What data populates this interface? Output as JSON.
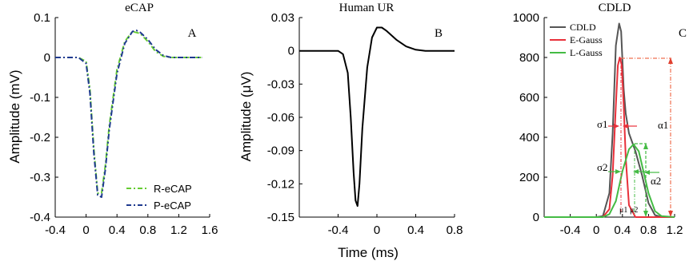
{
  "chart_data": [
    {
      "id": "A",
      "type": "line",
      "title": "eCAP",
      "panel_label": "A",
      "ylabel": "Amplitude (mV)",
      "xlabel": "",
      "xlim": [
        -0.4,
        1.6
      ],
      "ylim": [
        -0.4,
        0.1
      ],
      "xticks": [
        "-0.4",
        "0",
        "0.4",
        "0.8",
        "1.2",
        "1.6"
      ],
      "xtick_values": [
        -0.4,
        0,
        0.4,
        0.8,
        1.2,
        1.6
      ],
      "yticks": [
        "0.1",
        "0",
        "-0.1",
        "-0.2",
        "-0.3",
        "-0.4"
      ],
      "ytick_values": [
        0.1,
        0,
        -0.1,
        -0.2,
        -0.3,
        -0.4
      ],
      "legend_position": "bottom-right",
      "series": [
        {
          "name": "R-eCAP",
          "color": "#66cc33",
          "dash": "dash-dot",
          "x": [
            -0.4,
            -0.1,
            0.0,
            0.05,
            0.1,
            0.15,
            0.2,
            0.25,
            0.3,
            0.4,
            0.5,
            0.6,
            0.7,
            0.8,
            0.9,
            1.0,
            1.1,
            1.2,
            1.3,
            1.5
          ],
          "y": [
            0,
            0,
            -0.01,
            -0.08,
            -0.23,
            -0.34,
            -0.34,
            -0.27,
            -0.17,
            -0.03,
            0.04,
            0.065,
            0.06,
            0.04,
            0.015,
            0.003,
            0,
            0,
            0,
            0
          ]
        },
        {
          "name": "P-eCAP",
          "color": "#1f3a8f",
          "dash": "dash-dot",
          "x": [
            -0.4,
            -0.1,
            0.0,
            0.05,
            0.1,
            0.15,
            0.2,
            0.25,
            0.3,
            0.4,
            0.5,
            0.6,
            0.65,
            0.7,
            0.8,
            0.9,
            1.0,
            1.1,
            1.2,
            1.3,
            1.5
          ],
          "y": [
            0,
            0,
            -0.015,
            -0.09,
            -0.24,
            -0.345,
            -0.35,
            -0.28,
            -0.18,
            -0.04,
            0.035,
            0.065,
            0.068,
            0.063,
            0.045,
            0.02,
            0.005,
            0,
            0,
            0,
            0
          ]
        }
      ]
    },
    {
      "id": "B",
      "type": "line",
      "title": "Human UR",
      "panel_label": "B",
      "ylabel": "Amplitude (μV)",
      "xlabel": "Time (ms)",
      "xlim": [
        -0.8,
        0.8
      ],
      "ylim": [
        -0.15,
        0.03
      ],
      "xticks": [
        "-0.4",
        "0",
        "0.4",
        "0.8"
      ],
      "xtick_values": [
        -0.4,
        0,
        0.4,
        0.8
      ],
      "yticks": [
        "0.03",
        "0",
        "-0.03",
        "-0.06",
        "-0.09",
        "-0.12",
        "-0.15"
      ],
      "ytick_values": [
        0.03,
        0,
        -0.03,
        -0.06,
        -0.09,
        -0.12,
        -0.15
      ],
      "series": [
        {
          "name": "",
          "color": "#000000",
          "dash": "solid",
          "x": [
            -0.8,
            -0.4,
            -0.35,
            -0.3,
            -0.27,
            -0.24,
            -0.22,
            -0.2,
            -0.18,
            -0.15,
            -0.1,
            -0.05,
            0.0,
            0.05,
            0.1,
            0.2,
            0.3,
            0.4,
            0.5,
            0.6,
            0.8
          ],
          "y": [
            0,
            0,
            -0.003,
            -0.02,
            -0.06,
            -0.11,
            -0.135,
            -0.14,
            -0.12,
            -0.07,
            -0.015,
            0.012,
            0.021,
            0.021,
            0.018,
            0.01,
            0.004,
            0.001,
            0,
            0,
            0
          ]
        }
      ]
    },
    {
      "id": "C",
      "type": "line",
      "title": "CDLD",
      "panel_label": "C",
      "ylabel": "",
      "xlabel": "",
      "xlim": [
        -0.8,
        1.2
      ],
      "ylim": [
        0,
        1000
      ],
      "xticks": [
        "-0.4",
        "0",
        "0.4",
        "0.8",
        "1.2"
      ],
      "xtick_values": [
        -0.4,
        0,
        0.4,
        0.8,
        1.2
      ],
      "yticks": [
        "1000",
        "800",
        "600",
        "400",
        "200",
        "0"
      ],
      "ytick_values": [
        1000,
        800,
        600,
        400,
        200,
        0
      ],
      "legend_position": "top-left",
      "series": [
        {
          "name": "CDLD",
          "color": "#555555",
          "dash": "solid",
          "x": [
            -0.8,
            0.0,
            0.1,
            0.2,
            0.25,
            0.3,
            0.35,
            0.38,
            0.42,
            0.45,
            0.5,
            0.6,
            0.7,
            0.8,
            0.9,
            1.0,
            1.2
          ],
          "y": [
            0,
            0,
            5,
            120,
            420,
            860,
            970,
            930,
            640,
            520,
            420,
            330,
            210,
            70,
            10,
            0,
            0
          ]
        },
        {
          "name": "E-Gauss",
          "color": "#e8303a",
          "dash": "solid",
          "x": [
            -0.8,
            0.1,
            0.2,
            0.25,
            0.3,
            0.33,
            0.36,
            0.39,
            0.42,
            0.45,
            0.5,
            0.6,
            1.2
          ],
          "y": [
            0,
            0,
            40,
            210,
            560,
            760,
            800,
            760,
            560,
            300,
            60,
            0,
            0
          ]
        },
        {
          "name": "L-Gauss",
          "color": "#44bb44",
          "dash": "solid",
          "x": [
            -0.8,
            0.1,
            0.2,
            0.3,
            0.4,
            0.5,
            0.57,
            0.65,
            0.7,
            0.8,
            0.9,
            1.0,
            1.2
          ],
          "y": [
            0,
            0,
            15,
            80,
            230,
            340,
            365,
            330,
            260,
            120,
            30,
            5,
            0
          ]
        }
      ],
      "annotations": [
        {
          "text": "σ1",
          "key": "sigma1"
        },
        {
          "text": "σ2",
          "key": "sigma2"
        },
        {
          "text": "α1",
          "key": "alpha1"
        },
        {
          "text": "α2",
          "key": "alpha2"
        },
        {
          "text": "μ1",
          "key": "mu1"
        },
        {
          "text": "μ2",
          "key": "mu2"
        }
      ]
    }
  ],
  "colors": {
    "r_ecap": "#66cc33",
    "p_ecap": "#1f3a8f",
    "cdld": "#555555",
    "e_gauss": "#e8303a",
    "l_gauss": "#44bb44",
    "alpha1_arrow": "#f07050",
    "alpha2_arrow": "#44bb44",
    "sigma_arrow": "#e8303a"
  }
}
